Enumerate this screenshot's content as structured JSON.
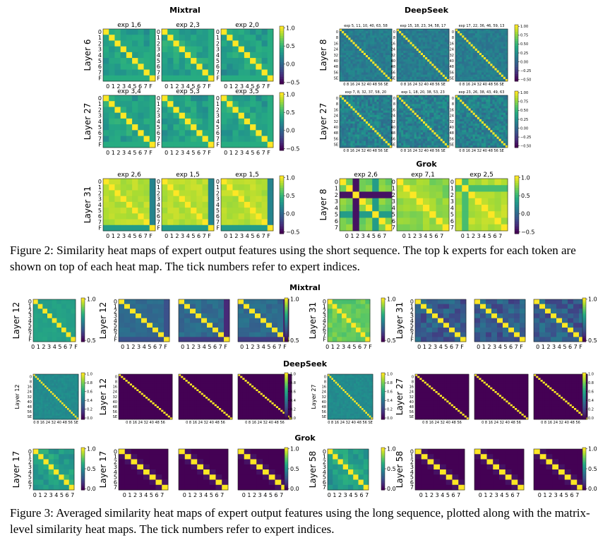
{
  "figure2": {
    "caption": "Figure 2: Similarity heat maps of expert output features using the short sequence. The top k experts for each token are shown on top of each heat map. The tick numbers refer to expert indices.",
    "groups": [
      {
        "title": "Mixtral",
        "ticks": [
          "0",
          "1",
          "2",
          "3",
          "4",
          "5",
          "6",
          "7",
          "F"
        ],
        "xticks_text": "0 1 2 3 4 5 6 7 F",
        "colorbar_ticks": [
          "1.0",
          "0.5",
          "0.0",
          "−0.5"
        ],
        "rows": [
          {
            "label": "Layer 6",
            "panels": [
              {
                "title": "exp 1,6"
              },
              {
                "title": "exp 2,3"
              },
              {
                "title": "exp 2,0"
              }
            ]
          },
          {
            "label": "Layer 27",
            "panels": [
              {
                "title": "exp 3,4"
              },
              {
                "title": "exp 5,3"
              },
              {
                "title": "exp 3,5"
              }
            ]
          },
          {
            "label": "Layer 31",
            "panels": [
              {
                "title": "exp 2,6"
              },
              {
                "title": "exp 1,5"
              },
              {
                "title": "exp 1,5"
              }
            ]
          }
        ]
      },
      {
        "title": "DeepSeek",
        "ticks": [
          "0",
          "8",
          "16",
          "24",
          "32",
          "40",
          "48",
          "56",
          "SE"
        ],
        "xticks_text": "0  8  16 24 32 40 48 56 SE",
        "colorbar_ticks": [
          "1.00",
          "0.75",
          "0.50",
          "0.25",
          "0.00",
          "−0.25",
          "−0.50"
        ],
        "rows": [
          {
            "label": "Layer 8",
            "panels": [
              {
                "title": "exp 5, 11, 10, 40, 63, 58"
              },
              {
                "title": "exp 15, 18, 23, 34, 58, 17"
              },
              {
                "title": "exp 17, 22, 36, 46, 59, 13"
              }
            ]
          },
          {
            "label": "Layer 27",
            "panels": [
              {
                "title": "exp 7, 8, 32, 37, 58, 20"
              },
              {
                "title": "exp 1, 18, 20, 38, 53, 23"
              },
              {
                "title": "exp 23, 26, 38, 43, 49, 63"
              }
            ]
          }
        ]
      },
      {
        "title": "Grok",
        "ticks": [
          "0",
          "1",
          "2",
          "3",
          "4",
          "5",
          "6",
          "7"
        ],
        "xticks_text": "0 1 2 3 4 5 6 7",
        "colorbar_ticks": [
          "1.0",
          "0.5",
          "0.0",
          "−0.5"
        ],
        "rows": [
          {
            "label": "Layer 8",
            "panels": [
              {
                "title": "exp 2,6"
              },
              {
                "title": "exp 7,1"
              },
              {
                "title": "exp 2,5"
              }
            ]
          }
        ]
      }
    ]
  },
  "figure3": {
    "caption": "Figure 3: Averaged similarity heat maps of expert output features using the long sequence, plotted along with the matrix-level similarity heat maps. The tick numbers refer to expert indices.",
    "sections": [
      {
        "title": "Mixtral",
        "ticks": [
          "0",
          "1",
          "2",
          "3",
          "4",
          "5",
          "6",
          "7",
          "F"
        ],
        "xticks_text": "0 1 2 3 4 5 6 7 F",
        "colorbar_ticks": [
          "1.0",
          "0.5"
        ],
        "blocks": [
          {
            "label": "Layer 12",
            "matrix_labels": [
              "Layer 12"
            ]
          },
          {
            "label": "Layer 31",
            "matrix_labels": [
              "Layer 31"
            ]
          }
        ]
      },
      {
        "title": "DeepSeek",
        "ticks": [
          "0",
          "8",
          "16",
          "24",
          "32",
          "40",
          "48",
          "56",
          "SE"
        ],
        "xticks_text": "0  8  16 24 32 40 48 56 SE",
        "colorbar_ticks": [
          "1.0",
          "0.8",
          "0.6",
          "0.4",
          "0.2",
          "0.0"
        ],
        "matrix_xticks_text": "0  8  16 24 32 40 48 56",
        "blocks": [
          {
            "label": "Layer 12",
            "matrix_labels": [
              "Layer 12"
            ]
          },
          {
            "label": "Layer 27",
            "matrix_labels": [
              "Layer 27"
            ]
          }
        ]
      },
      {
        "title": "Grok",
        "ticks": [
          "0",
          "1",
          "2",
          "3",
          "4",
          "5",
          "6",
          "7"
        ],
        "xticks_text": "0 1 2 3 4 5 6 7",
        "colorbar_ticks": [
          "1.0",
          "0.5",
          "0.0"
        ],
        "blocks": [
          {
            "label": "Layer 17",
            "matrix_labels": [
              "Layer 17"
            ]
          },
          {
            "label": "Layer 58",
            "matrix_labels": [
              "Layer 58"
            ]
          }
        ]
      }
    ]
  }
}
